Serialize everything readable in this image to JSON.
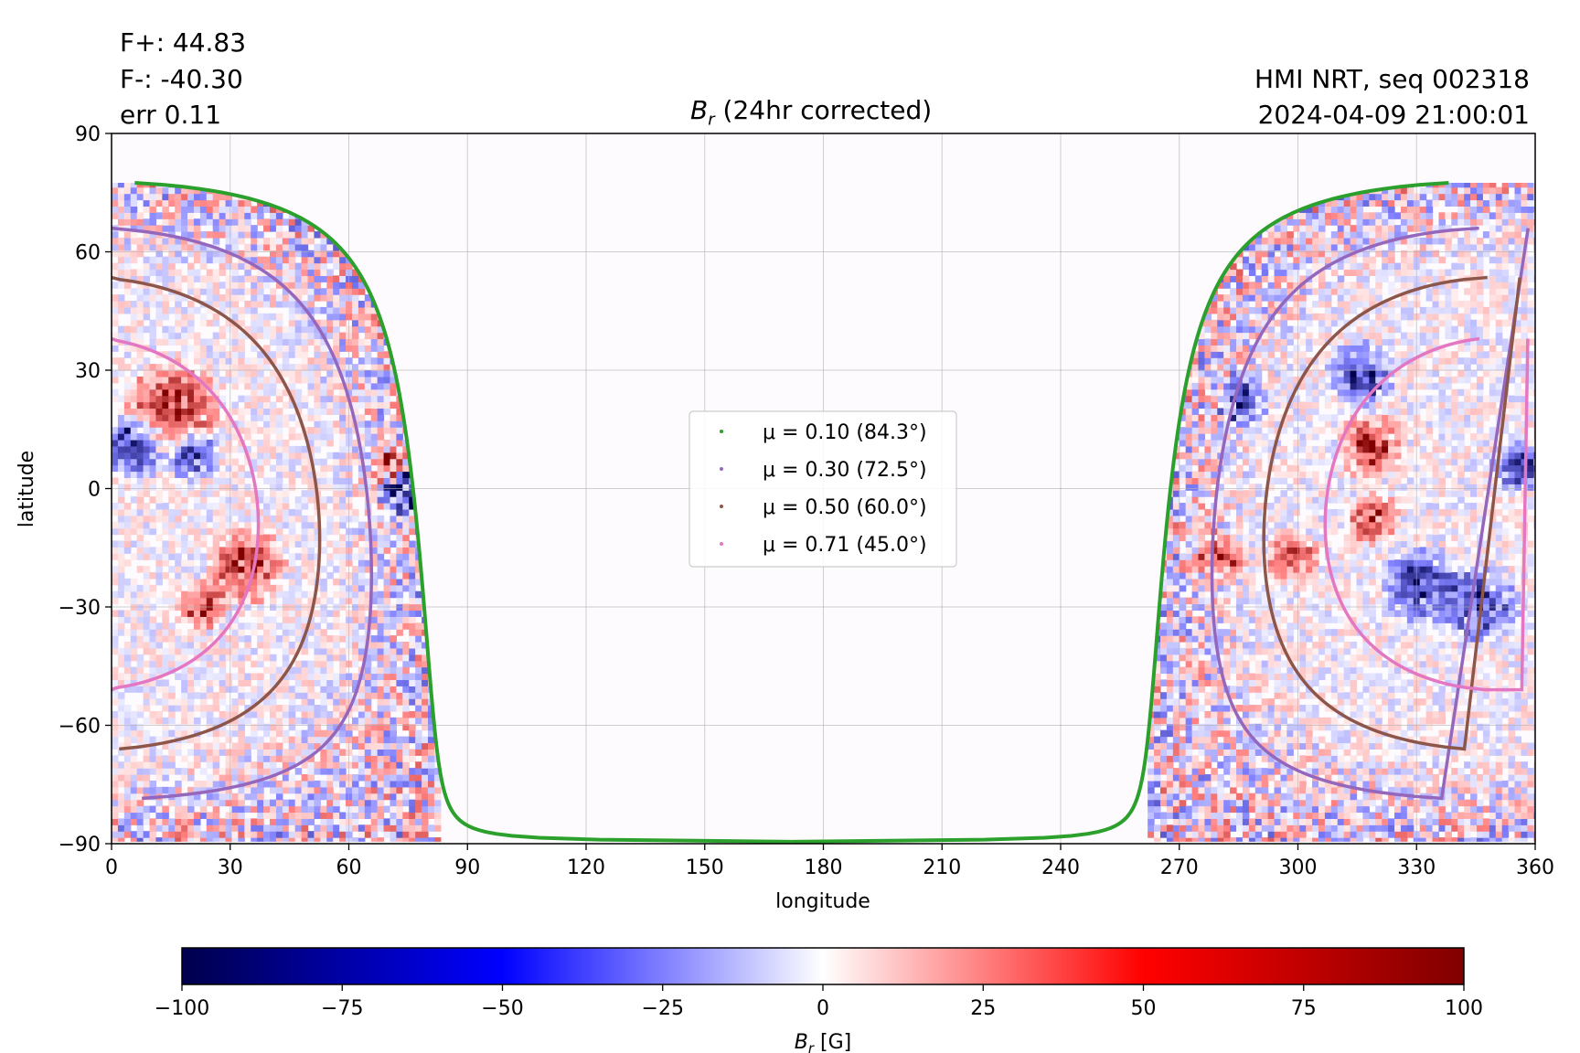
{
  "header": {
    "flux_pos": "F+: 44.83",
    "flux_neg": "F-: -40.30",
    "err": "err 0.11",
    "source": "HMI NRT, seq 002318",
    "timestamp": "2024-04-09 21:00:01"
  },
  "chart_data": {
    "type": "heatmap",
    "title_symbol": "B",
    "title_sub": "r",
    "title_rest": " (24hr corrected)",
    "xlabel": "longitude",
    "ylabel": "latitude",
    "xlim": [
      0,
      360
    ],
    "ylim": [
      -90,
      90
    ],
    "xticks": [
      0,
      30,
      60,
      90,
      120,
      150,
      180,
      210,
      240,
      270,
      300,
      330,
      360
    ],
    "yticks": [
      -90,
      -60,
      -30,
      0,
      30,
      60,
      90
    ],
    "grid": true,
    "observed_longitude_ranges": [
      [
        0,
        81
      ],
      [
        263,
        360
      ]
    ],
    "legend_position": "center",
    "legend": [
      {
        "label": "μ = 0.10 (84.3°)",
        "mu": 0.1,
        "angle_deg": 84.3,
        "color": "#2ca02c"
      },
      {
        "label": "μ = 0.30 (72.5°)",
        "mu": 0.3,
        "angle_deg": 72.5,
        "color": "#9467bd"
      },
      {
        "label": "μ = 0.50 (60.0°)",
        "mu": 0.5,
        "angle_deg": 60.0,
        "color": "#8c564b"
      },
      {
        "label": "μ = 0.71 (45.0°)",
        "mu": 0.71,
        "angle_deg": 45.0,
        "color": "#e377c2"
      }
    ],
    "colorbar": {
      "colormap": "seismic",
      "min": -100,
      "max": 100,
      "ticks": [
        -100,
        -75,
        -50,
        -25,
        0,
        25,
        50,
        75,
        100
      ],
      "label_symbol": "B",
      "label_sub": "r",
      "label_unit": " [G]",
      "colors": [
        "#00004c",
        "#0000ff",
        "#ffffff",
        "#ff0000",
        "#800000"
      ]
    }
  }
}
